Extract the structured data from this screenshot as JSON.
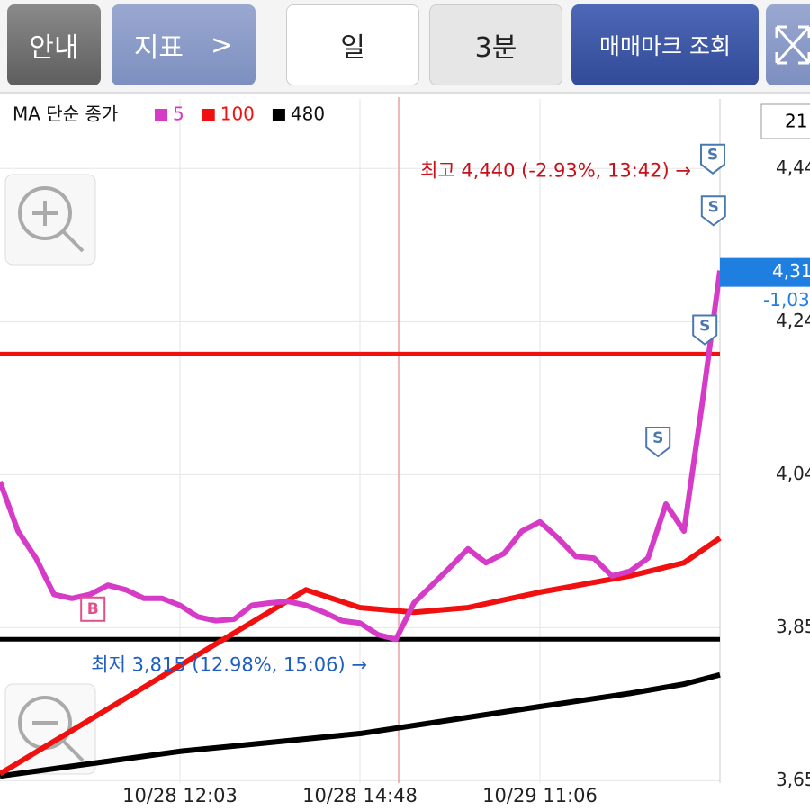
{
  "toolbar": {
    "guide": "안내",
    "indicator": "지표",
    "indicator_arrow": ">",
    "period": "일",
    "interval": "3분",
    "trade_marks": "매매마크 조회"
  },
  "chart_data": {
    "type": "line",
    "legend_title": "MA 단순 종가",
    "xlim": [
      0,
      100
    ],
    "xticks": [
      {
        "value": 25,
        "label": "10/28 12:03"
      },
      {
        "value": 50,
        "label": "10/28 14:48"
      },
      {
        "value": 75,
        "label": "10/29 11:06"
      }
    ],
    "ylim": [
      3649,
      4534
    ],
    "yticks": [
      {
        "value": 4444,
        "label": "4,44"
      },
      {
        "value": 4246,
        "label": "4,24"
      },
      {
        "value": 4048,
        "label": "4,04"
      },
      {
        "value": 3850,
        "label": "3,85"
      },
      {
        "value": 3652,
        "label": "3,65"
      }
    ],
    "grid": true,
    "series": [
      {
        "name": "5",
        "color": "#d63bc8",
        "x": [
          0,
          2.5,
          5,
          7.5,
          10,
          12.5,
          15,
          17.5,
          20,
          22.5,
          25,
          27.5,
          30,
          32.5,
          35,
          37.5,
          40,
          42.5,
          45,
          47.5,
          50,
          52.5,
          55,
          57.5,
          60,
          62.5,
          65,
          67.5,
          70,
          72.5,
          75,
          77.5,
          80,
          82.5,
          85,
          87.5,
          90,
          92.5,
          95,
          97.5,
          100
        ],
        "values": [
          4039,
          3975,
          3940,
          3893,
          3888,
          3893,
          3905,
          3899,
          3888,
          3888,
          3879,
          3864,
          3859,
          3861,
          3879,
          3882,
          3884,
          3879,
          3870,
          3859,
          3856,
          3841,
          3835,
          3882,
          3905,
          3928,
          3952,
          3934,
          3946,
          3975,
          3987,
          3966,
          3942,
          3940,
          3917,
          3923,
          3940,
          4010,
          3975,
          4138,
          4312
        ]
      },
      {
        "name": "100",
        "color": "#f01010",
        "x": [
          0,
          42.5,
          50,
          57.5,
          65,
          75,
          87.5,
          95,
          100
        ],
        "values": [
          3661,
          3899,
          3876,
          3870,
          3876,
          3896,
          3917,
          3934,
          3966
        ]
      },
      {
        "name": "480",
        "color": "#000000",
        "x": [
          0,
          25,
          50,
          75,
          87.5,
          95,
          100
        ],
        "values": [
          3658,
          3690,
          3713,
          3748,
          3765,
          3777,
          3789
        ]
      }
    ],
    "hlines": [
      {
        "value": 4204,
        "color": "#f01010"
      },
      {
        "value": 3835,
        "color": "#000000"
      }
    ],
    "annotations": [
      {
        "text": "최고 4,440 (-2.93%, 13:42) →",
        "x": 97,
        "value": 4440,
        "color": "#c8101a"
      },
      {
        "text": "최저 3,815 (12.98%, 15:06) →",
        "x": 52,
        "value": 3815,
        "color": "#1f5fbf"
      }
    ],
    "signals": [
      {
        "label": "S",
        "x": 99,
        "value": 4440
      },
      {
        "label": "S",
        "x": 99.1,
        "value": 4373
      },
      {
        "label": "S",
        "x": 97.9,
        "value": 4219
      },
      {
        "label": "S",
        "x": 91.4,
        "value": 4074
      },
      {
        "label": "B",
        "x": 12.9,
        "value": 3874
      }
    ],
    "price_tag": {
      "price": "4,31",
      "change": "-1,03"
    },
    "top_box": "21"
  }
}
